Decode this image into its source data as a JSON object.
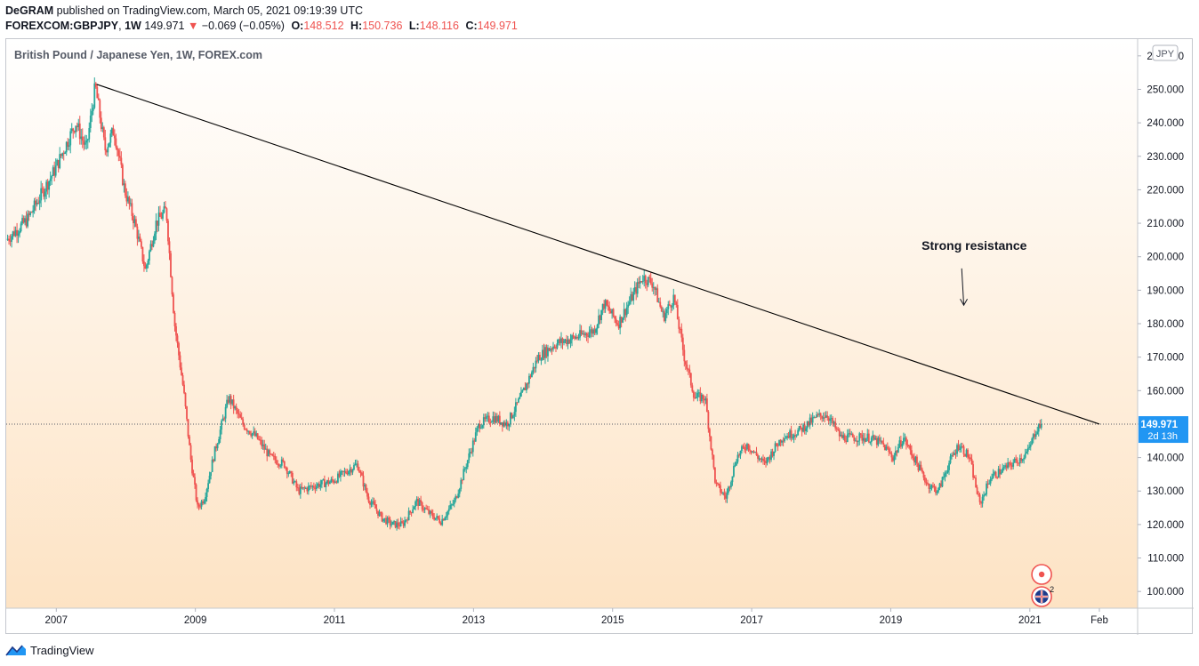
{
  "header": {
    "author": "DeGRAM",
    "published_text": "published on TradingView.com, March 05, 2021 09:19:39 UTC",
    "symbol": "FOREXCOM:GBPJPY",
    "interval": "1W",
    "last_price": "149.971",
    "change_arrow": "▼",
    "change": "−0.069 (−0.05%)",
    "open_label": "O:",
    "open": "148.512",
    "high_label": "H:",
    "high": "150.736",
    "low_label": "L:",
    "low": "148.116",
    "close_label": "C:",
    "close": "149.971"
  },
  "chart_data": {
    "type": "candlestick",
    "title": "British Pound / Japanese Yen, 1W, FOREX.com",
    "currency_label": "JPY",
    "ylim": [
      95,
      265
    ],
    "y_ticks": [
      "100.000",
      "110.000",
      "120.000",
      "130.000",
      "140.000",
      "150.000",
      "160.000",
      "170.000",
      "180.000",
      "190.000",
      "200.000",
      "210.000",
      "220.000",
      "230.000",
      "240.000",
      "250.000",
      "260.000"
    ],
    "x_ticks": [
      {
        "label": "2007",
        "t": 2007.0
      },
      {
        "label": "2009",
        "t": 2009.0
      },
      {
        "label": "2011",
        "t": 2011.0
      },
      {
        "label": "2013",
        "t": 2013.0
      },
      {
        "label": "2015",
        "t": 2015.0
      },
      {
        "label": "2017",
        "t": 2017.0
      },
      {
        "label": "2019",
        "t": 2019.0
      },
      {
        "label": "2021",
        "t": 2021.0
      },
      {
        "label": "Feb",
        "t": 2022.0
      }
    ],
    "xlim": [
      2006.28,
      2022.55
    ],
    "price_path": [
      [
        2006.3,
        205
      ],
      [
        2006.6,
        211
      ],
      [
        2007.0,
        226
      ],
      [
        2007.3,
        240
      ],
      [
        2007.45,
        232
      ],
      [
        2007.58,
        251
      ],
      [
        2007.72,
        232
      ],
      [
        2007.85,
        238
      ],
      [
        2008.0,
        220
      ],
      [
        2008.15,
        210
      ],
      [
        2008.3,
        196
      ],
      [
        2008.45,
        210
      ],
      [
        2008.6,
        214
      ],
      [
        2008.72,
        180
      ],
      [
        2008.85,
        160
      ],
      [
        2008.95,
        140
      ],
      [
        2009.05,
        125
      ],
      [
        2009.15,
        128
      ],
      [
        2009.3,
        142
      ],
      [
        2009.5,
        158
      ],
      [
        2009.7,
        150
      ],
      [
        2009.9,
        146
      ],
      [
        2010.1,
        140
      ],
      [
        2010.3,
        138
      ],
      [
        2010.5,
        130
      ],
      [
        2010.8,
        132
      ],
      [
        2011.0,
        133
      ],
      [
        2011.2,
        136
      ],
      [
        2011.35,
        138
      ],
      [
        2011.5,
        128
      ],
      [
        2011.7,
        122
      ],
      [
        2011.85,
        120
      ],
      [
        2012.0,
        120
      ],
      [
        2012.2,
        127
      ],
      [
        2012.4,
        123
      ],
      [
        2012.55,
        121
      ],
      [
        2012.75,
        127
      ],
      [
        2012.9,
        137
      ],
      [
        2013.1,
        150
      ],
      [
        2013.3,
        152
      ],
      [
        2013.5,
        150
      ],
      [
        2013.7,
        158
      ],
      [
        2013.95,
        170
      ],
      [
        2014.2,
        174
      ],
      [
        2014.5,
        176
      ],
      [
        2014.75,
        178
      ],
      [
        2014.9,
        186
      ],
      [
        2015.1,
        180
      ],
      [
        2015.25,
        186
      ],
      [
        2015.45,
        194
      ],
      [
        2015.6,
        192
      ],
      [
        2015.75,
        182
      ],
      [
        2015.9,
        188
      ],
      [
        2016.05,
        170
      ],
      [
        2016.2,
        158
      ],
      [
        2016.35,
        158
      ],
      [
        2016.5,
        132
      ],
      [
        2016.65,
        128
      ],
      [
        2016.8,
        140
      ],
      [
        2016.95,
        144
      ],
      [
        2017.2,
        138
      ],
      [
        2017.45,
        146
      ],
      [
        2017.7,
        148
      ],
      [
        2017.95,
        152
      ],
      [
        2018.1,
        153
      ],
      [
        2018.3,
        146
      ],
      [
        2018.5,
        146
      ],
      [
        2018.7,
        146
      ],
      [
        2018.9,
        144
      ],
      [
        2019.05,
        140
      ],
      [
        2019.2,
        146
      ],
      [
        2019.35,
        140
      ],
      [
        2019.55,
        132
      ],
      [
        2019.7,
        130
      ],
      [
        2019.85,
        138
      ],
      [
        2020.0,
        144
      ],
      [
        2020.15,
        140
      ],
      [
        2020.3,
        126
      ],
      [
        2020.45,
        134
      ],
      [
        2020.6,
        136
      ],
      [
        2020.75,
        138
      ],
      [
        2020.9,
        140
      ],
      [
        2021.0,
        142
      ],
      [
        2021.1,
        148
      ],
      [
        2021.17,
        149.971
      ]
    ],
    "trendline": {
      "x": [
        2007.58,
        2022.0
      ],
      "y": [
        251.5,
        150.0
      ]
    },
    "annotation": {
      "text": "Strong resistance",
      "t": 2020.2,
      "price": 202
    },
    "annotation_arrow": {
      "from": [
        2020.02,
        196.5
      ],
      "to": [
        2020.05,
        185.5
      ]
    },
    "last_price_label": "149.971",
    "countdown_label": "2d 13h",
    "event_badge_count": "2",
    "colors": {
      "up": "#26a69a",
      "down": "#ef5350",
      "price_label_bg": "#2196f3",
      "background_top": "#ffffff",
      "background_bottom": "#fde3c4",
      "trendline": "#000000"
    }
  },
  "footer": {
    "brand": "TradingView"
  }
}
